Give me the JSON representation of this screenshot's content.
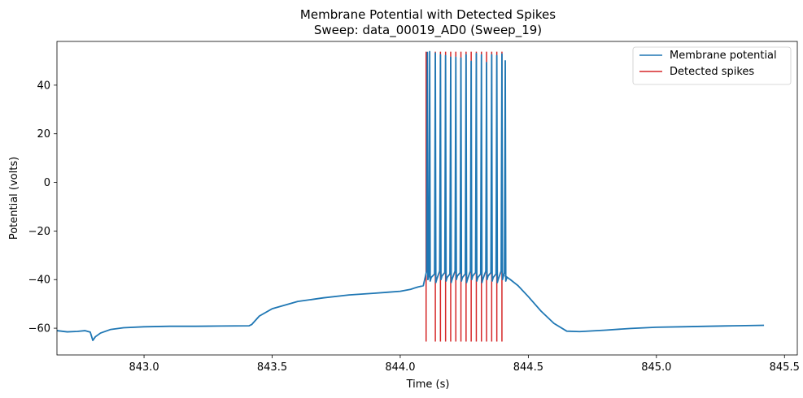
{
  "chart_data": {
    "type": "line",
    "title": "Membrane Potential with Detected Spikes",
    "subtitle": "Sweep: data_00019_AD0 (Sweep_19)",
    "xlabel": "Time (s)",
    "ylabel": "Potential (volts)",
    "xlim": [
      842.66,
      845.55
    ],
    "ylim": [
      -71,
      58
    ],
    "xticks": [
      843.0,
      843.5,
      844.0,
      844.5,
      845.0,
      845.5
    ],
    "xtick_labels": [
      "843.0",
      "843.5",
      "844.0",
      "844.5",
      "845.0",
      "845.5"
    ],
    "yticks": [
      -60,
      -40,
      -20,
      0,
      20,
      40
    ],
    "ytick_labels": [
      "−60",
      "−40",
      "−20",
      "0",
      "20",
      "40"
    ],
    "grid": false,
    "legend_position": "top-right",
    "series": [
      {
        "name": "Membrane potential",
        "color": "#1f77b4",
        "x": [
          842.66,
          842.7,
          842.74,
          842.77,
          842.79,
          842.8,
          842.81,
          842.83,
          842.87,
          842.92,
          843.0,
          843.1,
          843.2,
          843.3,
          843.41,
          843.42,
          843.45,
          843.5,
          843.55,
          843.6,
          843.7,
          843.8,
          843.9,
          843.95,
          844.0,
          844.04,
          844.07,
          844.09
        ],
        "y": [
          -61,
          -61.5,
          -61.3,
          -61,
          -61.6,
          -65,
          -63.5,
          -62,
          -60.5,
          -59.8,
          -59.4,
          -59.2,
          -59.2,
          -59.1,
          -59,
          -58.5,
          -55,
          -52,
          -50.5,
          -49,
          -47.5,
          -46.3,
          -45.6,
          -45.2,
          -44.8,
          -44,
          -43,
          -42.5
        ],
        "spike_train": {
          "peaks_x": [
            844.106,
            844.115,
            844.137,
            844.157,
            844.177,
            844.197,
            844.217,
            844.237,
            844.257,
            844.277,
            844.297,
            844.317,
            844.337,
            844.357,
            844.377,
            844.397,
            844.41
          ],
          "peaks_y": [
            53.5,
            53.8,
            53.2,
            52.5,
            52.2,
            51.5,
            51.5,
            51.2,
            52.5,
            49.8,
            53,
            52.5,
            49.3,
            52.5,
            52.2,
            52.8,
            50
          ],
          "trough_y": -38.5
        },
        "x_after": [
          844.41,
          844.43,
          844.46,
          844.5,
          844.55,
          844.6,
          844.65,
          844.7,
          844.8,
          844.9,
          845.0,
          845.1,
          845.2,
          845.3,
          845.42
        ],
        "y_after": [
          -38.5,
          -40,
          -42.5,
          -47,
          -53,
          -58,
          -61.2,
          -61.4,
          -60.8,
          -60.1,
          -59.6,
          -59.4,
          -59.2,
          -59,
          -58.8
        ]
      },
      {
        "name": "Detected spikes",
        "color": "#d62728",
        "type": "vlines",
        "x": [
          844.101,
          844.137,
          844.157,
          844.177,
          844.197,
          844.217,
          844.237,
          844.257,
          844.277,
          844.297,
          844.317,
          844.337,
          844.357,
          844.377,
          844.397
        ],
        "ymin": -65.5,
        "ymax": 53.8
      }
    ]
  }
}
